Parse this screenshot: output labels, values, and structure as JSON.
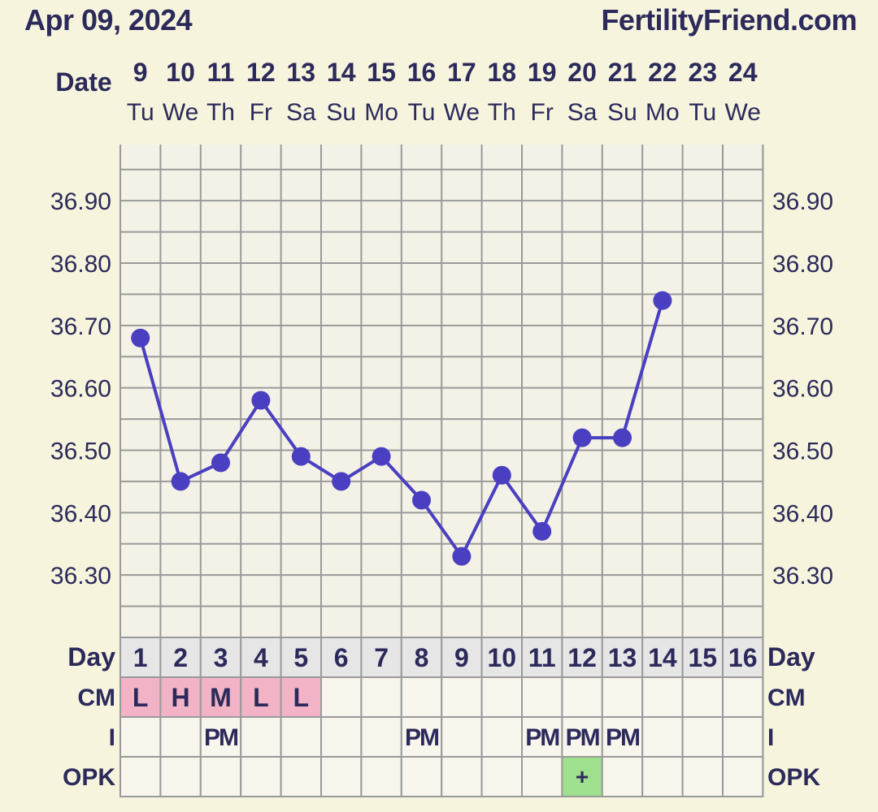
{
  "header": {
    "date": "Apr 09, 2024",
    "site": "FertilityFriend.com"
  },
  "colors": {
    "background": "#f7f4de",
    "grid_background": "#f4f1e6",
    "grid_line": "#9a9a9a",
    "line": "#4a3fc0",
    "text": "#2c2a5a",
    "cm_fill": "#f2b3c6",
    "opk_positive": "#9fe08f",
    "day_row": "#e6e6e6",
    "table_cell": "#f7f5ec"
  },
  "chart_data": {
    "type": "line",
    "date_label": "Date",
    "dates": [
      "9",
      "10",
      "11",
      "12",
      "13",
      "14",
      "15",
      "16",
      "17",
      "18",
      "19",
      "20",
      "21",
      "22",
      "23",
      "24"
    ],
    "weekdays": [
      "Tu",
      "We",
      "Th",
      "Fr",
      "Sa",
      "Su",
      "Mo",
      "Tu",
      "We",
      "Th",
      "Fr",
      "Sa",
      "Su",
      "Mo",
      "Tu",
      "We"
    ],
    "y_ticks": [
      "36.90",
      "36.80",
      "36.70",
      "36.60",
      "36.50",
      "36.40",
      "36.30"
    ],
    "ylim": [
      36.2,
      36.99
    ],
    "temperatures": [
      36.68,
      36.45,
      36.48,
      36.58,
      36.49,
      36.45,
      36.49,
      36.42,
      36.33,
      36.46,
      36.37,
      36.52,
      36.52,
      36.74,
      null,
      null
    ],
    "day_label": "Day",
    "days": [
      "1",
      "2",
      "3",
      "4",
      "5",
      "6",
      "7",
      "8",
      "9",
      "10",
      "11",
      "12",
      "13",
      "14",
      "15",
      "16"
    ],
    "cm_label": "CM",
    "cm": [
      "L",
      "H",
      "M",
      "L",
      "L",
      "",
      "",
      "",
      "",
      "",
      "",
      "",
      "",
      "",
      "",
      ""
    ],
    "i_label": "I",
    "i": [
      "",
      "",
      "PM",
      "",
      "",
      "",
      "",
      "PM",
      "",
      "",
      "PM",
      "PM",
      "PM",
      "",
      "",
      ""
    ],
    "opk_label": "OPK",
    "opk": [
      "",
      "",
      "",
      "",
      "",
      "",
      "",
      "",
      "",
      "",
      "",
      "+",
      "",
      "",
      "",
      ""
    ],
    "grid": true
  }
}
